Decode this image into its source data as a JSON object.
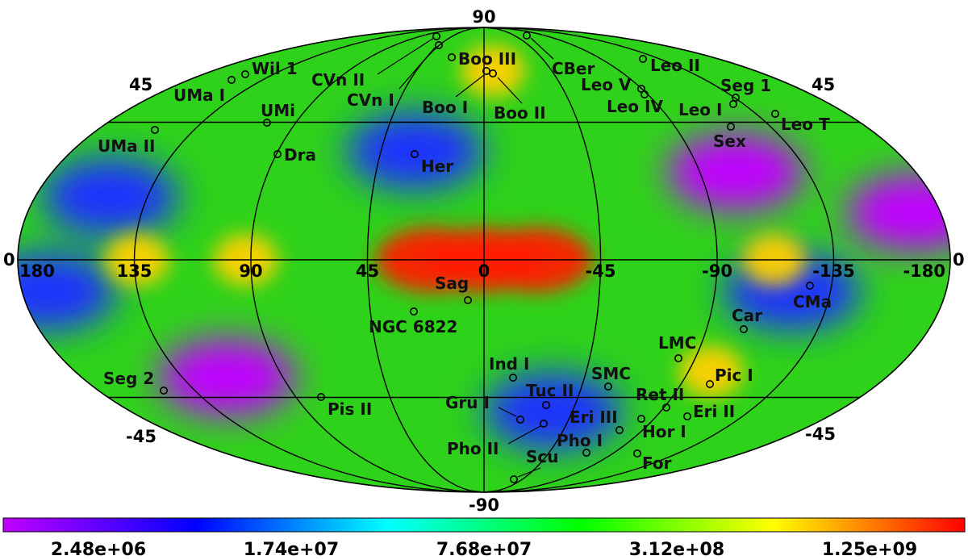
{
  "map": {
    "projection": "Mollweide (Galactic)",
    "lat_labels": {
      "north_pole": "90",
      "south_pole": "-90",
      "n45_left": "45",
      "n45_right": "45",
      "s45_left": "-45",
      "s45_right": "-45",
      "eq_left": "0",
      "eq_right": "0"
    },
    "lon_labels": [
      "180",
      "135",
      "90",
      "45",
      "0",
      "-45",
      "-90",
      "-135",
      "-180"
    ],
    "colors": {
      "max": "#ff2000",
      "high": "#ffd000",
      "mid": "#2fd21a",
      "low": "#20e0e8",
      "lower": "#1a30ff",
      "min": "#c000ff"
    },
    "hotspots": [
      {
        "l": 0,
        "b": 0,
        "level": "max"
      },
      {
        "l": 20,
        "b": 0,
        "level": "max"
      },
      {
        "l": -20,
        "b": 0,
        "level": "max"
      },
      {
        "l": 134,
        "b": 0,
        "level": "high"
      },
      {
        "l": 92,
        "b": 0,
        "level": "high"
      },
      {
        "l": -112,
        "b": 0,
        "level": "high"
      },
      {
        "l": -6,
        "b": 65,
        "level": "high"
      },
      {
        "l": -100,
        "b": -36,
        "level": "high"
      }
    ],
    "voids": [
      {
        "l": -105,
        "b": 28,
        "level": "min"
      },
      {
        "l": 115,
        "b": -38,
        "level": "min"
      },
      {
        "l": -170,
        "b": 15,
        "level": "min"
      },
      {
        "l": 150,
        "b": 20,
        "level": "lower"
      },
      {
        "l": 30,
        "b": 35,
        "level": "lower"
      },
      {
        "l": -35,
        "b": -50,
        "level": "lower"
      },
      {
        "l": -120,
        "b": -10,
        "level": "lower"
      },
      {
        "l": 170,
        "b": -10,
        "level": "lower"
      }
    ],
    "objects": [
      {
        "name": "Wil 1"
      },
      {
        "name": "UMa I"
      },
      {
        "name": "CVn II"
      },
      {
        "name": "CVn I"
      },
      {
        "name": "Boo III"
      },
      {
        "name": "CBer"
      },
      {
        "name": "Leo II"
      },
      {
        "name": "Boo I"
      },
      {
        "name": "Boo II"
      },
      {
        "name": "Leo V"
      },
      {
        "name": "Seg 1"
      },
      {
        "name": "Leo IV"
      },
      {
        "name": "Leo I"
      },
      {
        "name": "UMi"
      },
      {
        "name": "Leo T"
      },
      {
        "name": "UMa II"
      },
      {
        "name": "Sex"
      },
      {
        "name": "Dra"
      },
      {
        "name": "Her"
      },
      {
        "name": "Sag"
      },
      {
        "name": "CMa"
      },
      {
        "name": "Car"
      },
      {
        "name": "NGC 6822"
      },
      {
        "name": "LMC"
      },
      {
        "name": "Ind I"
      },
      {
        "name": "SMC"
      },
      {
        "name": "Pic I"
      },
      {
        "name": "Seg 2"
      },
      {
        "name": "Tuc II"
      },
      {
        "name": "Ret II"
      },
      {
        "name": "Gru I"
      },
      {
        "name": "Pis II"
      },
      {
        "name": "Eri II"
      },
      {
        "name": "Eri III"
      },
      {
        "name": "Hor I"
      },
      {
        "name": "Pho I"
      },
      {
        "name": "Pho II"
      },
      {
        "name": "Scu"
      },
      {
        "name": "For"
      }
    ]
  },
  "colorbar": {
    "tick_labels": [
      "2.48e+06",
      "1.74e+07",
      "7.68e+07",
      "3.12e+08",
      "1.25e+09"
    ],
    "scale": "log",
    "colors": [
      "#c000ff",
      "#0000ff",
      "#00ffff",
      "#00ff00",
      "#ffff00",
      "#ff0000"
    ]
  }
}
